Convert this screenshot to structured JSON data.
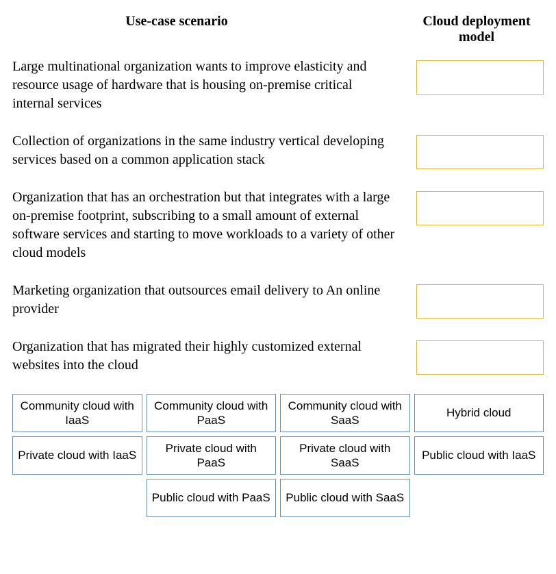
{
  "colors": {
    "dropzone_border": "#d9b93a",
    "option_border": "#6a8fad"
  },
  "headers": {
    "left": "Use-case scenario",
    "right": "Cloud deployment model"
  },
  "scenarios": [
    "Large multinational organization wants to improve elasticity and resource usage of hardware that is housing on-premise critical internal services",
    "Collection of organizations in the same industry vertical developing services based on a common application stack",
    "Organization that has an orchestration but that integrates with a large on-premise footprint, subscribing to a small amount of external software services and starting to move workloads to a variety of other cloud models",
    "Marketing organization that outsources email delivery to An online provider",
    "Organization that has migrated their highly customized external websites into the cloud"
  ],
  "options_grid": [
    [
      "Community cloud with IaaS",
      "Community cloud with PaaS",
      "Community cloud with SaaS",
      "Hybrid cloud"
    ],
    [
      "Private cloud with IaaS",
      "Private cloud with PaaS",
      "Private cloud with SaaS",
      "Public cloud with IaaS"
    ],
    [
      "",
      "Public cloud with PaaS",
      "Public cloud with SaaS",
      ""
    ]
  ]
}
